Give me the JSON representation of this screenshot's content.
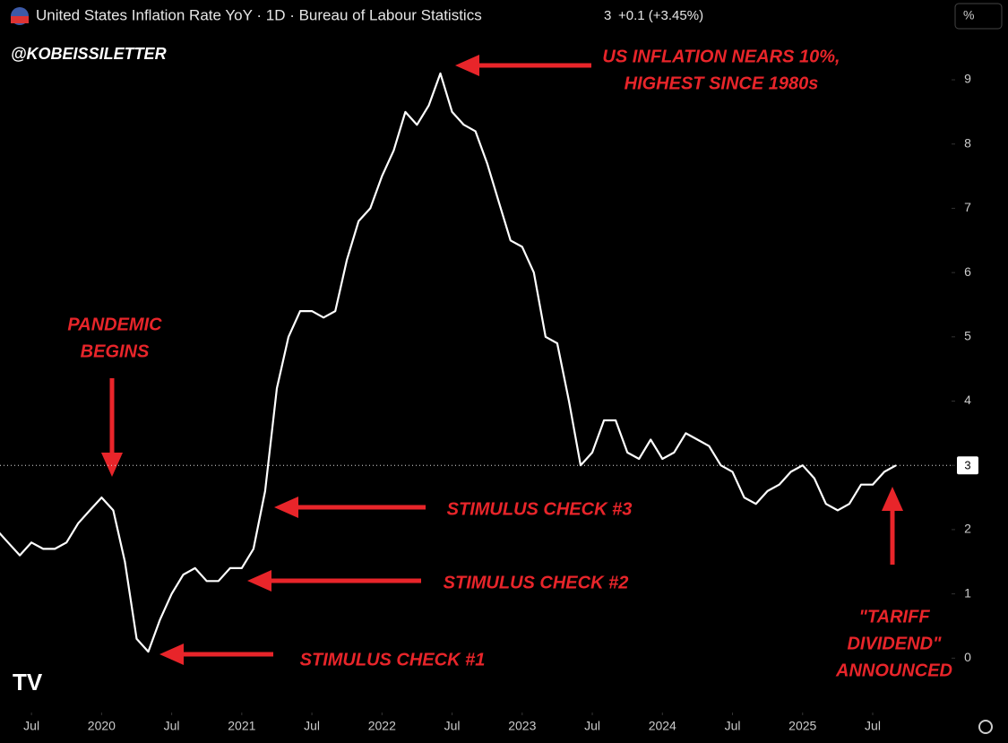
{
  "chart_data": {
    "type": "line",
    "title": "United States Inflation Rate YoY · 1D · Bureau of Labour Statistics",
    "change": "+0.1 (+3.45%)",
    "watermark": "@KOBEISSILETTER",
    "unit": "%",
    "color": "#ffffff",
    "x": [
      "2019-04",
      "2019-05",
      "2019-06",
      "2019-07",
      "2019-08",
      "2019-09",
      "2019-10",
      "2019-11",
      "2019-12",
      "2020-01",
      "2020-02",
      "2020-03",
      "2020-04",
      "2020-05",
      "2020-06",
      "2020-07",
      "2020-08",
      "2020-09",
      "2020-10",
      "2020-11",
      "2020-12",
      "2021-01",
      "2021-02",
      "2021-03",
      "2021-04",
      "2021-05",
      "2021-06",
      "2021-07",
      "2021-08",
      "2021-09",
      "2021-10",
      "2021-11",
      "2021-12",
      "2022-01",
      "2022-02",
      "2022-03",
      "2022-04",
      "2022-05",
      "2022-06",
      "2022-07",
      "2022-08",
      "2022-09",
      "2022-10",
      "2022-11",
      "2022-12",
      "2023-01",
      "2023-02",
      "2023-03",
      "2023-04",
      "2023-05",
      "2023-06",
      "2023-07",
      "2023-08",
      "2023-09",
      "2023-10",
      "2023-11",
      "2023-12",
      "2024-01",
      "2024-02",
      "2024-03",
      "2024-04",
      "2024-05",
      "2024-06",
      "2024-07",
      "2024-08",
      "2024-09",
      "2024-10",
      "2024-11",
      "2024-12",
      "2025-01",
      "2025-02",
      "2025-03",
      "2025-04",
      "2025-05",
      "2025-06",
      "2025-07",
      "2025-08",
      "2025-09"
    ],
    "values": [
      2.0,
      1.8,
      1.6,
      1.8,
      1.7,
      1.7,
      1.8,
      2.1,
      2.3,
      2.5,
      2.3,
      1.5,
      0.3,
      0.1,
      0.6,
      1.0,
      1.3,
      1.4,
      1.2,
      1.2,
      1.4,
      1.4,
      1.7,
      2.6,
      4.2,
      5.0,
      5.4,
      5.4,
      5.3,
      5.4,
      6.2,
      6.8,
      7.0,
      7.5,
      7.9,
      8.5,
      8.3,
      8.6,
      9.1,
      8.5,
      8.3,
      8.2,
      7.7,
      7.1,
      6.5,
      6.4,
      6.0,
      5.0,
      4.9,
      4.0,
      3,
      3.2,
      3.7,
      3.7,
      3.2,
      3.1,
      3.4,
      3.1,
      3.2,
      3.5,
      3.4,
      3.3,
      3,
      2.9,
      2.5,
      2.4,
      2.6,
      2.7,
      2.9,
      3,
      2.8,
      2.4,
      2.3,
      2.4,
      2.7,
      2.7,
      2.9,
      3
    ],
    "ylim": [
      -0.4,
      9.6
    ],
    "yticks": [
      0,
      1,
      2,
      3,
      4,
      5,
      6,
      7,
      8,
      9
    ],
    "xticks": [
      {
        "value": "2019-07",
        "label": "Jul"
      },
      {
        "value": "2020-01",
        "label": "2020"
      },
      {
        "value": "2020-07",
        "label": "Jul"
      },
      {
        "value": "2021-01",
        "label": "2021"
      },
      {
        "value": "2021-07",
        "label": "Jul"
      },
      {
        "value": "2022-01",
        "label": "2022"
      },
      {
        "value": "2022-07",
        "label": "Jul"
      },
      {
        "value": "2023-01",
        "label": "2023"
      },
      {
        "value": "2023-07",
        "label": "Jul"
      },
      {
        "value": "2024-01",
        "label": "2024"
      },
      {
        "value": "2024-07",
        "label": "Jul"
      },
      {
        "value": "2025-01",
        "label": "2025"
      },
      {
        "value": "2025-07",
        "label": "Jul"
      }
    ],
    "annotations": [
      {
        "lines": [
          "US INFLATION NEARS 10%,",
          "HIGHEST SINCE 1980s"
        ]
      },
      {
        "lines": [
          "PANDEMIC",
          "BEGINS"
        ]
      },
      {
        "lines": [
          "STIMULUS CHECK #3"
        ]
      },
      {
        "lines": [
          "STIMULUS CHECK #2"
        ]
      },
      {
        "lines": [
          "STIMULUS CHECK #1"
        ]
      },
      {
        "lines": [
          "\"TARIFF",
          "DIVIDEND\"",
          "ANNOUNCED"
        ]
      }
    ]
  }
}
